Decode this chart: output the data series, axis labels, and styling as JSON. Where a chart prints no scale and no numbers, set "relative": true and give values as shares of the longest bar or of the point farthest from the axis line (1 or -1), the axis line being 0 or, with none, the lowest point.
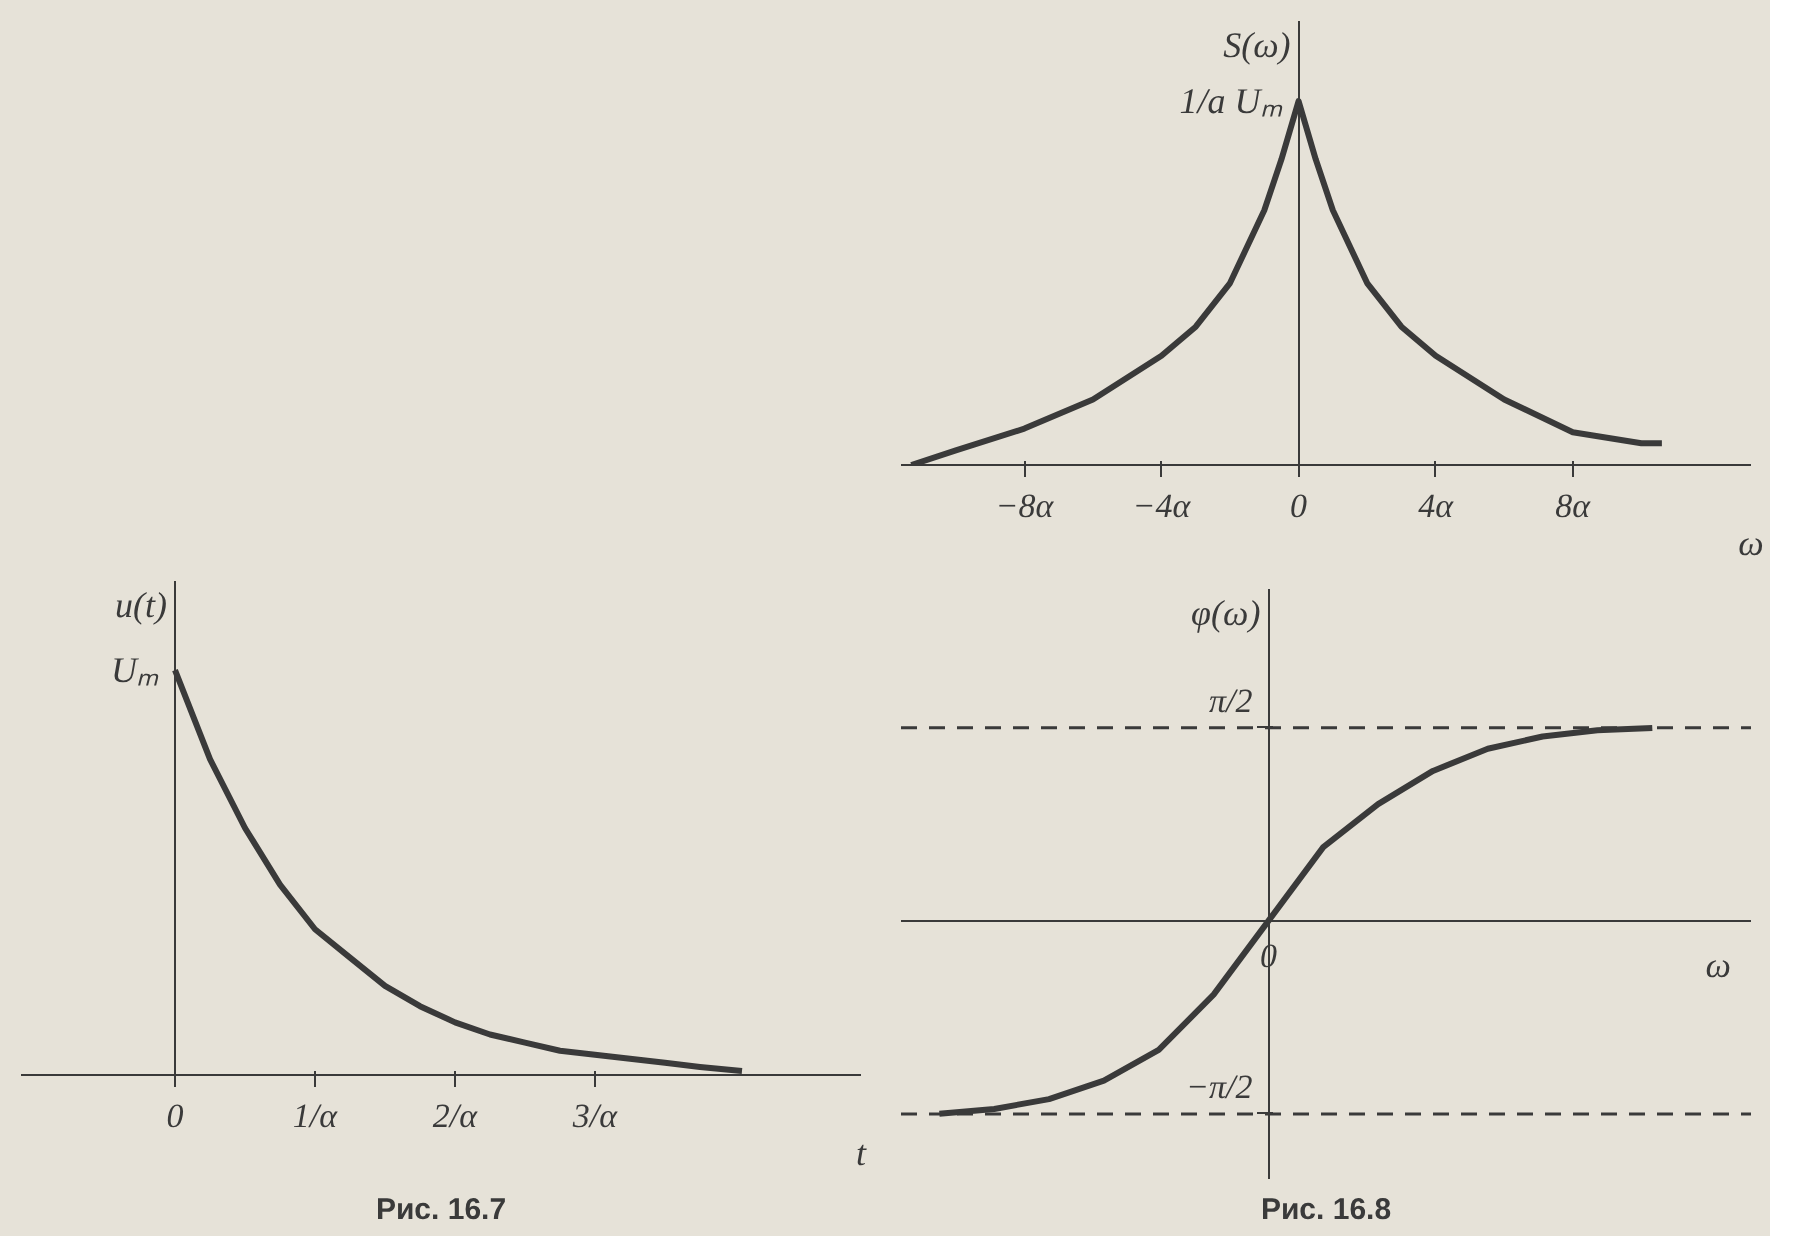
{
  "chart_data": [
    {
      "type": "line",
      "relative": true,
      "xlabel": "t",
      "ylabel": "u(t)",
      "xlim": [
        -1.1,
        4.9
      ],
      "xticks": [
        0,
        {
          "value": 1,
          "label": "1/α"
        },
        {
          "value": 2,
          "label": "2/α"
        },
        {
          "value": 3,
          "label": "3/α"
        }
      ],
      "x": [
        0,
        0.25,
        0.5,
        0.75,
        1,
        1.25,
        1.5,
        1.75,
        2,
        2.25,
        2.5,
        2.75,
        3,
        3.25,
        3.5,
        3.75,
        4.05
      ],
      "series": [
        {
          "color": "#3a3a3a",
          "values": [
            1,
            0.78,
            0.61,
            0.47,
            0.36,
            0.29,
            0.22,
            0.17,
            0.13,
            0.1,
            0.08,
            0.06,
            0.05,
            0.04,
            0.03,
            0.02,
            0.01
          ]
        }
      ],
      "annotations": [
        {
          "text": "Uₘ",
          "x": 0,
          "y": 1
        },
        "Рис. 16.7"
      ]
    },
    {
      "type": "line",
      "relative": true,
      "xlabel": "ω",
      "ylabel": "S(ω)",
      "xlim": [
        -11.6,
        13.2
      ],
      "xticks": [
        {
          "value": -8,
          "label": "−8α"
        },
        {
          "value": -4,
          "label": "−4α"
        },
        0,
        {
          "value": 4,
          "label": "4α"
        },
        {
          "value": 8,
          "label": "8α"
        }
      ],
      "x": [
        -11.3,
        -10,
        -8,
        -6,
        -4,
        -3,
        -2,
        -1,
        -0.5,
        0,
        0.5,
        1,
        2,
        3,
        4,
        6,
        8,
        10,
        10.6
      ],
      "series": [
        {
          "color": "#3a3a3a",
          "values": [
            0,
            0.04,
            0.1,
            0.18,
            0.3,
            0.38,
            0.5,
            0.7,
            0.84,
            1,
            0.84,
            0.7,
            0.5,
            0.38,
            0.3,
            0.18,
            0.09,
            0.06,
            0.06
          ]
        }
      ],
      "annotations": [
        {
          "text": "1/a Uₘ",
          "x": 0,
          "y": 1
        }
      ]
    },
    {
      "type": "line",
      "xlabel": "ω",
      "ylabel": "φ(ω)",
      "ylim": [
        -2.1,
        2.7
      ],
      "yticks": [
        {
          "value": 1.571,
          "label": "π/2"
        },
        {
          "value": -1.571,
          "label": "−π/2"
        }
      ],
      "categories": [
        null,
        null,
        null,
        null,
        null,
        null,
        "0",
        null,
        null,
        null,
        null,
        null,
        null,
        null
      ],
      "series": [
        {
          "color": "#3a3a3a",
          "values": [
            -1.57,
            -1.53,
            -1.45,
            -1.3,
            -1.05,
            -0.6,
            0,
            0.6,
            0.95,
            1.22,
            1.4,
            1.5,
            1.55,
            1.57
          ]
        }
      ],
      "ref_lines": [
        {
          "axis": "y",
          "value": 1.571,
          "line_style": "dashed"
        },
        {
          "axis": "y",
          "value": -1.571,
          "line_style": "dashed"
        }
      ],
      "annotations": [
        "Рис. 16.8"
      ]
    }
  ]
}
